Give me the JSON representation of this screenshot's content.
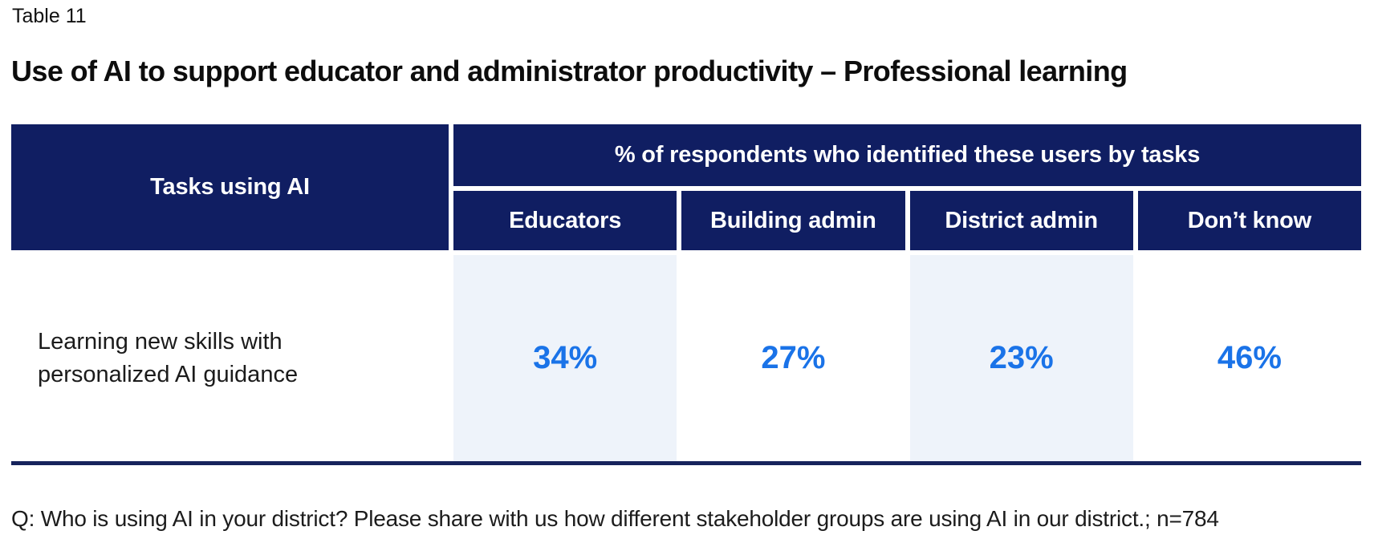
{
  "page": {
    "table_label": "Table 11",
    "title": "Use of AI to support educator and administrator productivity – Professional learning",
    "footnote": "Q: Who is using AI in your district? Please share with us how different stakeholder groups are using AI in our district.; n=784"
  },
  "table": {
    "tasks_header": "Tasks using AI",
    "group_header": "% of respondents who identified these users by tasks",
    "columns": [
      "Educators",
      "Building admin",
      "District admin",
      "Don’t know"
    ],
    "rows": [
      {
        "task": "Learning new skills with personalized AI guidance",
        "values": [
          "34%",
          "27%",
          "23%",
          "46%"
        ]
      }
    ]
  },
  "colors": {
    "header_navy": "#101e62",
    "bottom_rule_navy": "#16235c",
    "value_blue": "#1a73e8",
    "striped_column_bg": "#eef3fa",
    "body_text": "#1b1b1b",
    "header_text": "#ffffff"
  },
  "chart_data": {
    "type": "table",
    "title": "Use of AI to support educator and administrator productivity – Professional learning",
    "table_number": "Table 11",
    "group_header": "% of respondents who identified these users by tasks",
    "row_header_label": "Tasks using AI",
    "categories": [
      "Educators",
      "Building admin",
      "District admin",
      "Don't know"
    ],
    "series": [
      {
        "name": "Learning new skills with personalized AI guidance",
        "values": [
          34,
          27,
          23,
          46
        ],
        "unit": "%"
      }
    ],
    "footnote": "Q: Who is using AI in your district? Please share with us how different stakeholder groups are using AI in our district.; n=784",
    "sample_size": 784
  }
}
